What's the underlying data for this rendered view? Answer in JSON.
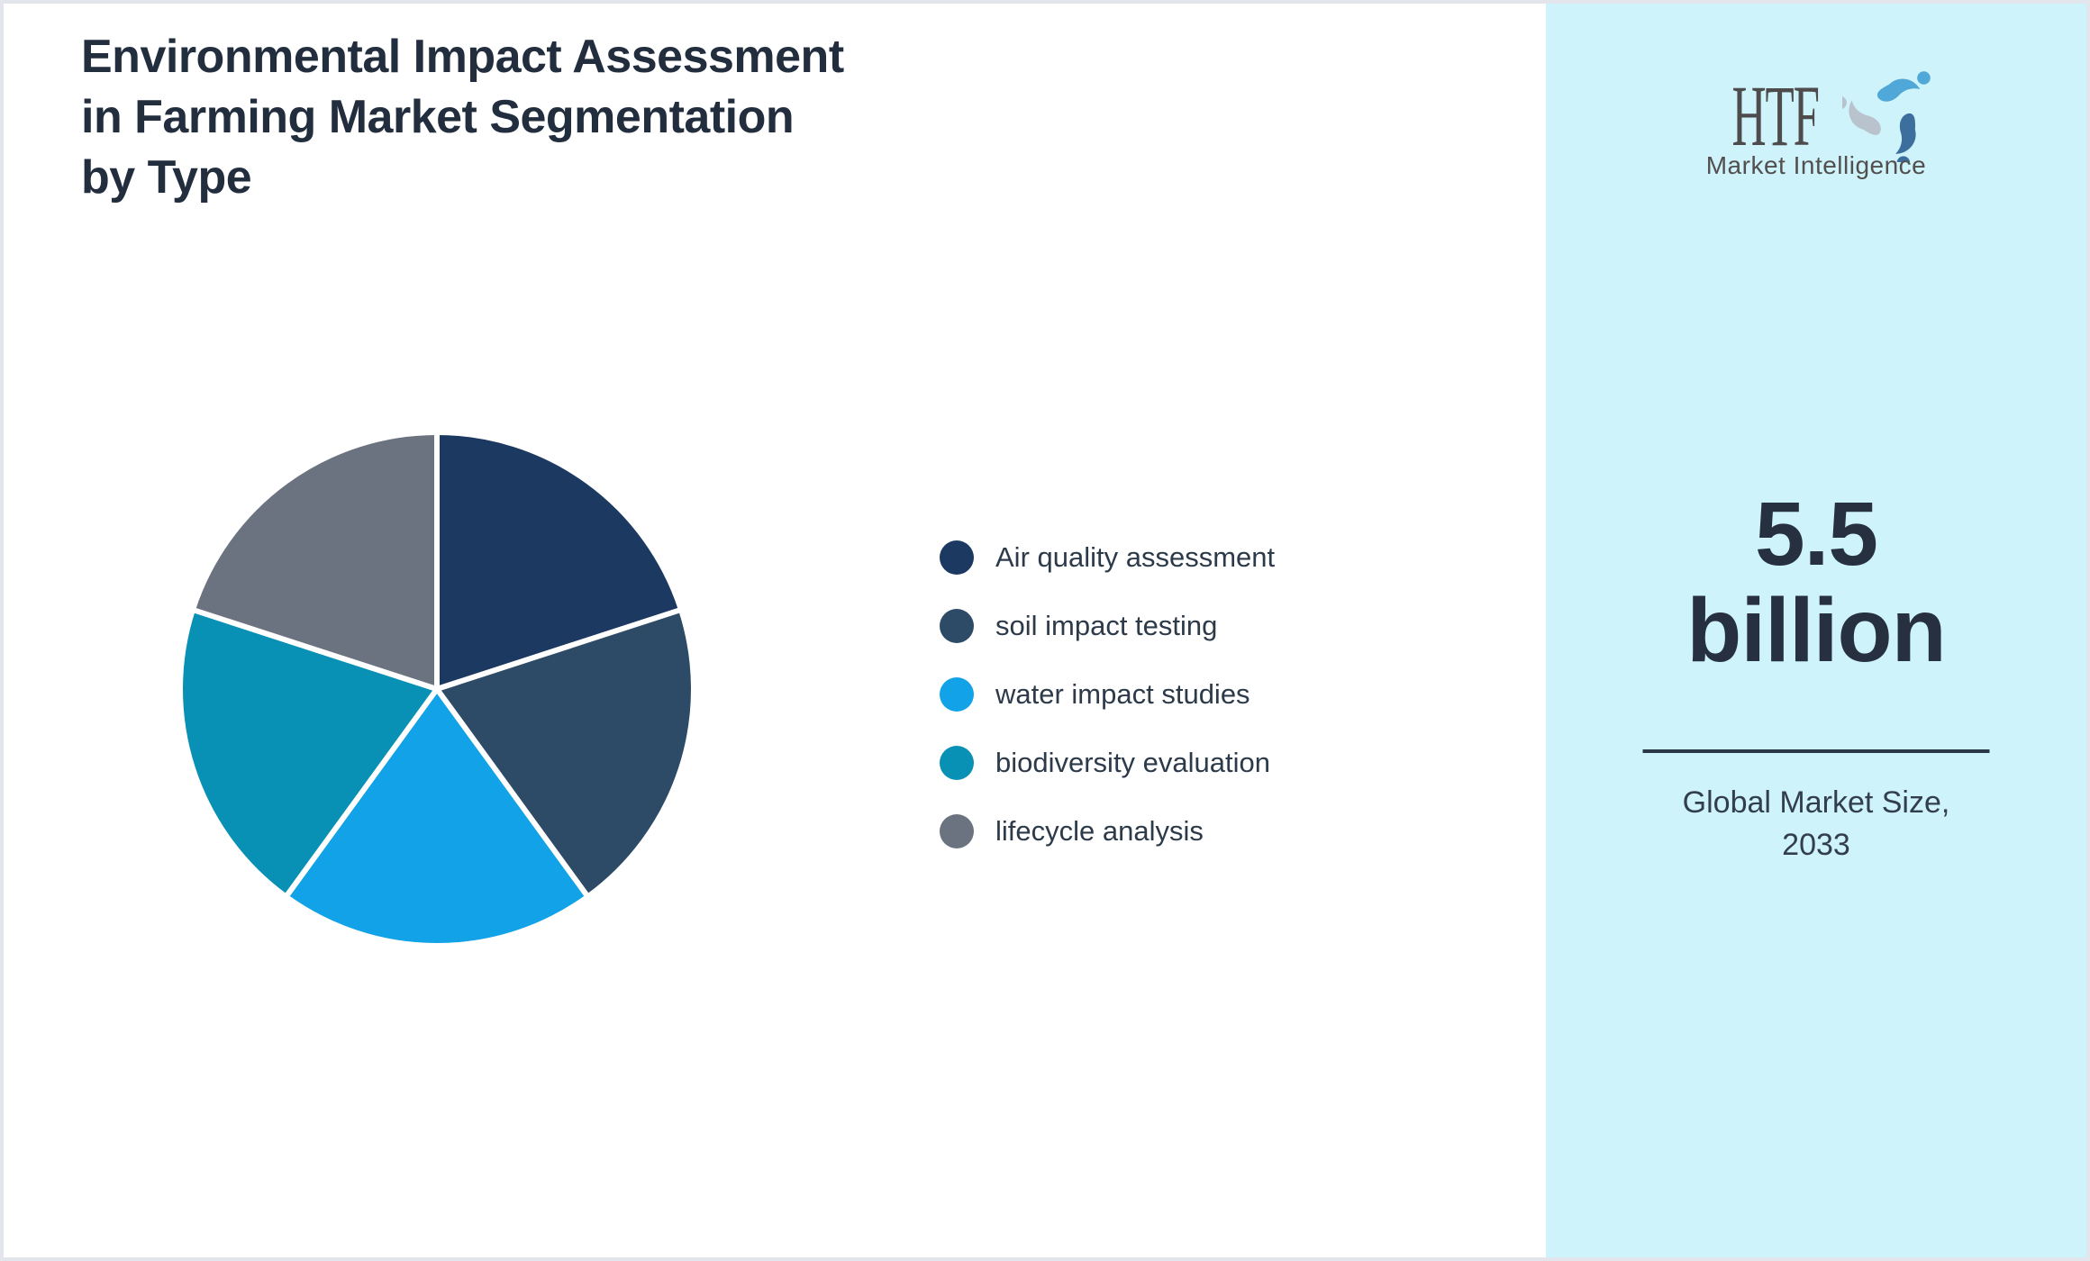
{
  "header": {
    "title": "Environmental Impact Assessment in Farming Market Segmentation by Type",
    "title_lines": [
      "Environmental Impact Assessment",
      "in Farming Market Segmentation",
      "by Type"
    ]
  },
  "chart_data": {
    "type": "pie",
    "title": "Environmental Impact Assessment in Farming Market Segmentation by Type",
    "labels": [
      "Air quality assessment",
      "soil impact testing",
      "water impact studies",
      "biodiversity evaluation",
      "lifecycle analysis"
    ],
    "values": [
      20,
      20,
      20,
      20,
      20
    ],
    "unit": "percent-estimated",
    "colors": [
      "#1c3a61",
      "#2d4b67",
      "#11a2e8",
      "#0891b5",
      "#6b7280"
    ],
    "start_angle_deg": 0,
    "direction": "clockwise",
    "slice_border_color": "#ffffff",
    "legend_position": "right-of-chart",
    "data_labels_shown": false
  },
  "sidebar": {
    "logo": {
      "text": "HTF",
      "subtext": "Market Intelligence"
    },
    "market_size": {
      "value_line1": "5.5",
      "value_line2": "billion",
      "caption_line1": "Global Market Size,",
      "caption_line2": "2033"
    }
  },
  "colors": {
    "sidebar_bg": "#cef3fa",
    "title_text": "#222e3e",
    "accent_dark": "#2a3744",
    "legend_text": "#2c3a4a",
    "page_border": "#e2e5ec",
    "logo_blue_light": "#4fa8d8",
    "logo_blue_steel": "#3c6f9e",
    "logo_gray": "#b9c3cd"
  }
}
